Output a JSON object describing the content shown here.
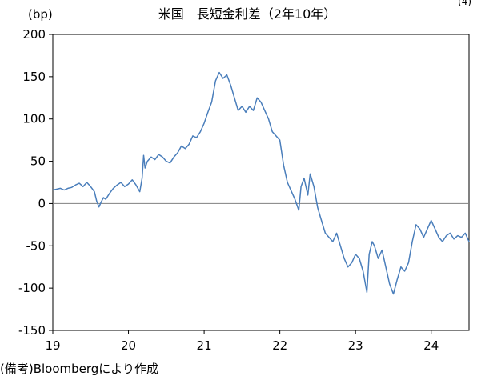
{
  "corner_mark": "(4)",
  "chart_data": {
    "type": "line",
    "title": "米国　長短金利差（2年10年）",
    "unit_label": "(bp)",
    "source_note": "(備考)Bloombergにより作成",
    "ylim": [
      -150,
      200
    ],
    "yticks": [
      200,
      150,
      100,
      50,
      0,
      -50,
      -100,
      -150
    ],
    "xlim": [
      2019.0,
      2024.5
    ],
    "xticks": [
      {
        "value": 2019,
        "label": "19"
      },
      {
        "value": 2020,
        "label": "20"
      },
      {
        "value": 2021,
        "label": "21"
      },
      {
        "value": 2022,
        "label": "22"
      },
      {
        "value": 2023,
        "label": "23"
      },
      {
        "value": 2024,
        "label": "24"
      }
    ],
    "grid": false,
    "zero_line": true,
    "line_color": "#4a7ebb",
    "series": [
      {
        "values": [
          [
            2019.0,
            16
          ],
          [
            2019.05,
            17
          ],
          [
            2019.1,
            18
          ],
          [
            2019.15,
            16
          ],
          [
            2019.2,
            18
          ],
          [
            2019.25,
            19
          ],
          [
            2019.3,
            22
          ],
          [
            2019.35,
            24
          ],
          [
            2019.4,
            20
          ],
          [
            2019.45,
            25
          ],
          [
            2019.5,
            20
          ],
          [
            2019.55,
            14
          ],
          [
            2019.58,
            3
          ],
          [
            2019.61,
            -4
          ],
          [
            2019.64,
            2
          ],
          [
            2019.67,
            7
          ],
          [
            2019.7,
            5
          ],
          [
            2019.75,
            12
          ],
          [
            2019.8,
            18
          ],
          [
            2019.85,
            22
          ],
          [
            2019.9,
            25
          ],
          [
            2019.95,
            20
          ],
          [
            2020.0,
            23
          ],
          [
            2020.05,
            28
          ],
          [
            2020.1,
            22
          ],
          [
            2020.15,
            14
          ],
          [
            2020.18,
            30
          ],
          [
            2020.2,
            57
          ],
          [
            2020.22,
            42
          ],
          [
            2020.25,
            50
          ],
          [
            2020.3,
            55
          ],
          [
            2020.35,
            52
          ],
          [
            2020.4,
            58
          ],
          [
            2020.45,
            55
          ],
          [
            2020.5,
            50
          ],
          [
            2020.55,
            48
          ],
          [
            2020.6,
            55
          ],
          [
            2020.65,
            60
          ],
          [
            2020.7,
            68
          ],
          [
            2020.75,
            65
          ],
          [
            2020.8,
            70
          ],
          [
            2020.85,
            80
          ],
          [
            2020.9,
            78
          ],
          [
            2020.95,
            85
          ],
          [
            2021.0,
            95
          ],
          [
            2021.05,
            108
          ],
          [
            2021.1,
            120
          ],
          [
            2021.15,
            145
          ],
          [
            2021.2,
            155
          ],
          [
            2021.25,
            148
          ],
          [
            2021.3,
            152
          ],
          [
            2021.35,
            140
          ],
          [
            2021.4,
            125
          ],
          [
            2021.45,
            110
          ],
          [
            2021.5,
            115
          ],
          [
            2021.55,
            108
          ],
          [
            2021.6,
            115
          ],
          [
            2021.65,
            110
          ],
          [
            2021.7,
            125
          ],
          [
            2021.75,
            120
          ],
          [
            2021.8,
            110
          ],
          [
            2021.85,
            100
          ],
          [
            2021.9,
            85
          ],
          [
            2021.95,
            80
          ],
          [
            2022.0,
            75
          ],
          [
            2022.05,
            45
          ],
          [
            2022.1,
            25
          ],
          [
            2022.15,
            15
          ],
          [
            2022.2,
            5
          ],
          [
            2022.25,
            -8
          ],
          [
            2022.28,
            20
          ],
          [
            2022.32,
            30
          ],
          [
            2022.37,
            10
          ],
          [
            2022.4,
            35
          ],
          [
            2022.45,
            20
          ],
          [
            2022.5,
            -5
          ],
          [
            2022.55,
            -20
          ],
          [
            2022.6,
            -35
          ],
          [
            2022.65,
            -40
          ],
          [
            2022.7,
            -45
          ],
          [
            2022.75,
            -35
          ],
          [
            2022.8,
            -50
          ],
          [
            2022.85,
            -65
          ],
          [
            2022.9,
            -75
          ],
          [
            2022.95,
            -70
          ],
          [
            2023.0,
            -60
          ],
          [
            2023.05,
            -65
          ],
          [
            2023.1,
            -80
          ],
          [
            2023.15,
            -105
          ],
          [
            2023.18,
            -60
          ],
          [
            2023.22,
            -45
          ],
          [
            2023.25,
            -50
          ],
          [
            2023.3,
            -65
          ],
          [
            2023.35,
            -55
          ],
          [
            2023.4,
            -75
          ],
          [
            2023.45,
            -95
          ],
          [
            2023.5,
            -107
          ],
          [
            2023.55,
            -90
          ],
          [
            2023.6,
            -75
          ],
          [
            2023.65,
            -80
          ],
          [
            2023.7,
            -70
          ],
          [
            2023.75,
            -45
          ],
          [
            2023.8,
            -25
          ],
          [
            2023.85,
            -30
          ],
          [
            2023.9,
            -40
          ],
          [
            2023.95,
            -30
          ],
          [
            2024.0,
            -20
          ],
          [
            2024.05,
            -30
          ],
          [
            2024.1,
            -40
          ],
          [
            2024.15,
            -45
          ],
          [
            2024.2,
            -38
          ],
          [
            2024.25,
            -35
          ],
          [
            2024.3,
            -42
          ],
          [
            2024.35,
            -38
          ],
          [
            2024.4,
            -40
          ],
          [
            2024.45,
            -35
          ],
          [
            2024.5,
            -45
          ]
        ]
      }
    ]
  }
}
